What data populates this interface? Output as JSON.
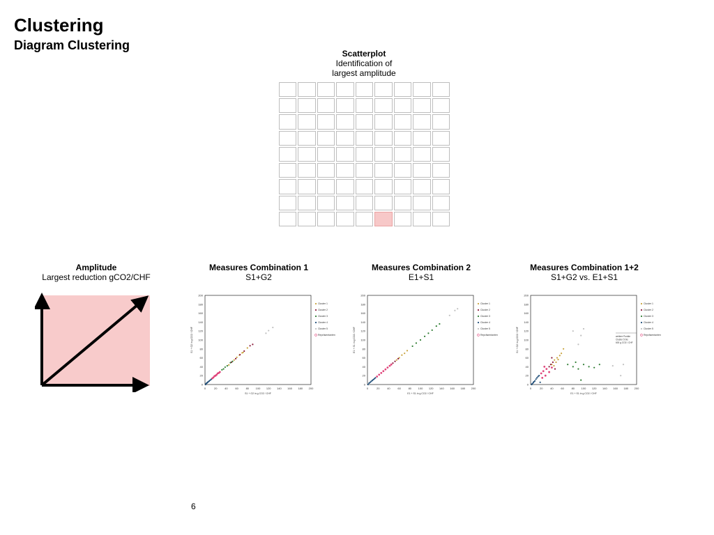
{
  "header": {
    "title": "Clustering",
    "subtitle": "Diagram Clustering"
  },
  "scatterplot_section": {
    "heading": "Scatterplot",
    "line1": "Identification of",
    "line2": "largest amplitude",
    "grid": {
      "rows": 9,
      "cols": 9,
      "highlight": {
        "row": 8,
        "col": 5
      },
      "highlight_color": "#f7c8c8"
    }
  },
  "amplitude": {
    "heading": "Amplitude",
    "text": "Largest reduction gCO2/CHF",
    "box_color": "#f8cbcb"
  },
  "panels": [
    {
      "heading": "Measures Combination 1",
      "sub": "S1+G2"
    },
    {
      "heading": "Measures Combination 2",
      "sub": "E1+S1"
    },
    {
      "heading": "Measures Combination 1+2",
      "sub": "S1+G2 vs. E1+S1"
    }
  ],
  "cluster_colors": [
    "#c8a23a",
    "#8b1a3a",
    "#2e7d32",
    "#1f4e79",
    "#c0c0c0",
    "#e0457b"
  ],
  "chart_data": [
    {
      "type": "scatter",
      "xlabel": "S1 + G2 in g CO2 / CHF",
      "ylabel": "S1 + G2 in g CO2 / CHF",
      "xlim": [
        0,
        200
      ],
      "ylim": [
        0,
        200
      ],
      "xticks": [
        0,
        20,
        40,
        60,
        80,
        100,
        120,
        140,
        160,
        180,
        200
      ],
      "yticks": [
        0,
        20,
        40,
        60,
        80,
        100,
        120,
        140,
        160,
        180,
        200
      ],
      "legend": [
        "Cluster 1",
        "Cluster 2",
        "Cluster 3",
        "Cluster 4",
        "Cluster 5",
        "Repräsentanten"
      ],
      "legend_position": "right",
      "series": [
        {
          "name": "Cluster 1",
          "points": [
            [
              45,
              44
            ],
            [
              55,
              55
            ],
            [
              60,
              61
            ],
            [
              65,
              66
            ],
            [
              70,
              71
            ],
            [
              72,
              72
            ],
            [
              80,
              82
            ]
          ]
        },
        {
          "name": "Cluster 2",
          "points": [
            [
              50,
              50
            ],
            [
              58,
              58
            ],
            [
              66,
              67
            ],
            [
              74,
              75
            ],
            [
              85,
              87
            ],
            [
              90,
              90
            ]
          ]
        },
        {
          "name": "Cluster 3",
          "points": [
            [
              32,
              33
            ],
            [
              35,
              35
            ],
            [
              38,
              39
            ],
            [
              42,
              42
            ],
            [
              48,
              49
            ],
            [
              52,
              52
            ]
          ]
        },
        {
          "name": "Cluster 4",
          "points": [
            [
              1,
              0
            ],
            [
              2,
              2
            ],
            [
              3,
              3
            ],
            [
              4,
              4
            ],
            [
              5,
              5
            ],
            [
              6,
              6
            ],
            [
              8,
              8
            ],
            [
              10,
              10
            ],
            [
              12,
              12
            ]
          ]
        },
        {
          "name": "Cluster 5",
          "points": [
            [
              115,
              115
            ],
            [
              120,
              121
            ],
            [
              128,
              128
            ]
          ]
        },
        {
          "name": "Repräsentanten",
          "points": [
            [
              14,
              14
            ],
            [
              16,
              16
            ],
            [
              18,
              19
            ],
            [
              20,
              20
            ],
            [
              22,
              22
            ],
            [
              24,
              25
            ],
            [
              26,
              26
            ],
            [
              28,
              28
            ]
          ]
        }
      ]
    },
    {
      "type": "scatter",
      "xlabel": "E1 + S1 in g CO2 / CHF",
      "ylabel": "E1 + S1 in g CO2 / CHF",
      "xlim": [
        0,
        200
      ],
      "ylim": [
        0,
        200
      ],
      "xticks": [
        0,
        20,
        40,
        60,
        80,
        100,
        120,
        140,
        160,
        180,
        200
      ],
      "yticks": [
        0,
        20,
        40,
        60,
        80,
        100,
        120,
        140,
        160,
        180,
        200
      ],
      "legend": [
        "Cluster 1",
        "Cluster 2",
        "Cluster 3",
        "Cluster 4",
        "Cluster 5",
        "Repräsentanten"
      ],
      "legend_position": "right",
      "series": [
        {
          "name": "Cluster 1",
          "points": [
            [
              55,
              55
            ],
            [
              60,
              60
            ],
            [
              65,
              66
            ],
            [
              70,
              70
            ],
            [
              75,
              76
            ]
          ]
        },
        {
          "name": "Cluster 2",
          "points": [
            [
              48,
              48
            ],
            [
              52,
              52
            ],
            [
              58,
              58
            ]
          ]
        },
        {
          "name": "Cluster 3",
          "points": [
            [
              85,
              86
            ],
            [
              92,
              93
            ],
            [
              100,
              100
            ],
            [
              108,
              108
            ],
            [
              115,
              115
            ],
            [
              122,
              122
            ],
            [
              130,
              131
            ],
            [
              136,
              136
            ]
          ]
        },
        {
          "name": "Cluster 4",
          "points": [
            [
              1,
              0
            ],
            [
              3,
              3
            ],
            [
              5,
              5
            ],
            [
              7,
              7
            ],
            [
              9,
              9
            ],
            [
              11,
              11
            ],
            [
              13,
              13
            ],
            [
              15,
              15
            ]
          ]
        },
        {
          "name": "Cluster 5",
          "points": [
            [
              155,
              155
            ],
            [
              165,
              166
            ],
            [
              170,
              170
            ]
          ]
        },
        {
          "name": "Repräsentanten",
          "points": [
            [
              18,
              18
            ],
            [
              22,
              22
            ],
            [
              26,
              26
            ],
            [
              30,
              30
            ],
            [
              34,
              34
            ],
            [
              38,
              38
            ],
            [
              42,
              42
            ],
            [
              45,
              45
            ]
          ]
        }
      ]
    },
    {
      "type": "scatter",
      "xlabel": "E1 + S1 in g CO2 / CHF",
      "ylabel": "S1 + G2 in g CO2 / CHF",
      "xlim": [
        0,
        200
      ],
      "ylim": [
        0,
        200
      ],
      "xticks": [
        0,
        20,
        40,
        60,
        80,
        100,
        120,
        140,
        160,
        180,
        200
      ],
      "yticks": [
        0,
        20,
        40,
        60,
        80,
        100,
        120,
        140,
        160,
        180,
        200
      ],
      "legend": [
        "Cluster 1",
        "Cluster 2",
        "Cluster 3",
        "Cluster 4",
        "Cluster 5",
        "Repräsentanten"
      ],
      "legend_position": "right",
      "annotation": [
        "weitere Punkte",
        "Cluster 5 bis",
        "600 g CO2 / CHF"
      ],
      "series": [
        {
          "name": "Cluster 1",
          "points": [
            [
              40,
              45
            ],
            [
              45,
              55
            ],
            [
              50,
              60
            ],
            [
              55,
              65
            ],
            [
              58,
              70
            ],
            [
              62,
              80
            ],
            [
              48,
              50
            ],
            [
              52,
              56
            ],
            [
              44,
              42
            ]
          ]
        },
        {
          "name": "Cluster 2",
          "points": [
            [
              35,
              40
            ],
            [
              38,
              45
            ],
            [
              42,
              50
            ],
            [
              46,
              35
            ],
            [
              40,
              60
            ]
          ]
        },
        {
          "name": "Cluster 3",
          "points": [
            [
              70,
              45
            ],
            [
              80,
              40
            ],
            [
              90,
              35
            ],
            [
              100,
              45
            ],
            [
              110,
              40
            ],
            [
              120,
              38
            ],
            [
              130,
              45
            ],
            [
              95,
              10
            ],
            [
              85,
              50
            ]
          ]
        },
        {
          "name": "Cluster 4",
          "points": [
            [
              2,
              0
            ],
            [
              3,
              2
            ],
            [
              5,
              4
            ],
            [
              6,
              6
            ],
            [
              8,
              8
            ],
            [
              10,
              12
            ],
            [
              12,
              15
            ],
            [
              14,
              18
            ],
            [
              16,
              20
            ],
            [
              18,
              5
            ]
          ]
        },
        {
          "name": "Cluster 5",
          "points": [
            [
              80,
              120
            ],
            [
              95,
              110
            ],
            [
              100,
              125
            ],
            [
              155,
              42
            ],
            [
              170,
              20
            ],
            [
              175,
              45
            ],
            [
              90,
              90
            ]
          ]
        },
        {
          "name": "Repräsentanten",
          "points": [
            [
              20,
              25
            ],
            [
              24,
              30
            ],
            [
              28,
              20
            ],
            [
              30,
              35
            ],
            [
              35,
              28
            ],
            [
              40,
              38
            ],
            [
              22,
              15
            ],
            [
              26,
              40
            ]
          ]
        }
      ]
    }
  ],
  "footer": {
    "page_number": "6"
  }
}
